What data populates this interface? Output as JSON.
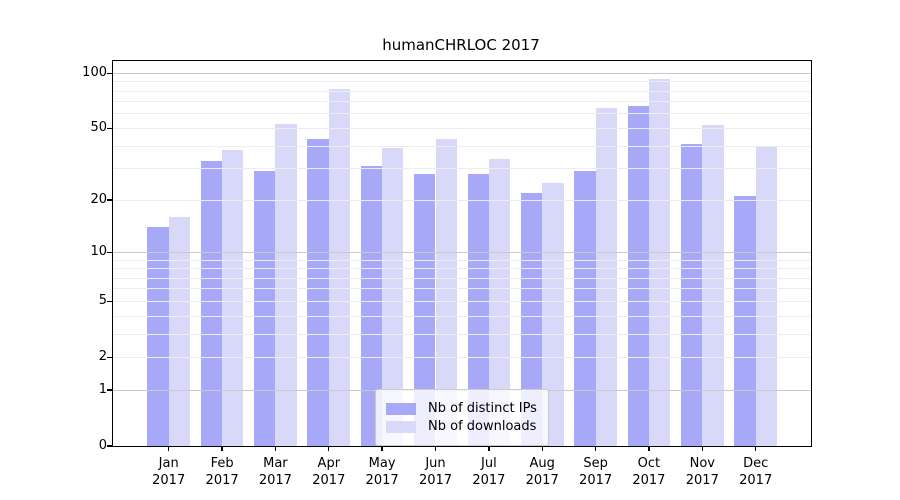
{
  "title": "humanCHRLOC 2017",
  "legend": {
    "items": [
      {
        "label": "Nb of distinct IPs",
        "color": "#a8a8f9"
      },
      {
        "label": "Nb of downloads",
        "color": "#d8d8f9"
      }
    ]
  },
  "chart_data": {
    "type": "bar",
    "title": "humanCHRLOC 2017",
    "categories": [
      "Jan 2017",
      "Feb 2017",
      "Mar 2017",
      "Apr 2017",
      "May 2017",
      "Jun 2017",
      "Jul 2017",
      "Aug 2017",
      "Sep 2017",
      "Oct 2017",
      "Nov 2017",
      "Dec 2017"
    ],
    "x_tick_line1": [
      "Jan",
      "Feb",
      "Mar",
      "Apr",
      "May",
      "Jun",
      "Jul",
      "Aug",
      "Sep",
      "Oct",
      "Nov",
      "Dec"
    ],
    "x_tick_line2": [
      "2017",
      "2017",
      "2017",
      "2017",
      "2017",
      "2017",
      "2017",
      "2017",
      "2017",
      "2017",
      "2017",
      "2017"
    ],
    "series": [
      {
        "name": "Nb of distinct IPs",
        "color": "#a8a8f9",
        "values": [
          14,
          33,
          29,
          44,
          31,
          28,
          28,
          22,
          29,
          66,
          41,
          21
        ]
      },
      {
        "name": "Nb of downloads",
        "color": "#d8d8f9",
        "values": [
          16,
          38,
          53,
          82,
          39,
          44,
          34,
          25,
          65,
          93,
          52,
          40
        ]
      }
    ],
    "xlabel": "",
    "ylabel": "",
    "y_scale": "log10(1+v)",
    "y_ticks": [
      100,
      50,
      20,
      10,
      5,
      2,
      1,
      0
    ],
    "y_tick_labels": [
      "100",
      "50",
      "20",
      "10",
      "5",
      "2",
      "1",
      "0"
    ],
    "major_gridlines": [
      1,
      10,
      100
    ],
    "minor_gridlines": [
      2,
      3,
      4,
      5,
      6,
      7,
      8,
      9,
      20,
      30,
      40,
      50,
      60,
      70,
      80,
      90
    ],
    "ylim_top_value": 116,
    "grid": true,
    "legend_position": "lower center",
    "bar_color_distinct_ips": "#a8a8f9",
    "bar_color_downloads": "#d8d8f9",
    "grid_major_color": "#c9c9c9",
    "grid_minor_color": "#ededed"
  }
}
